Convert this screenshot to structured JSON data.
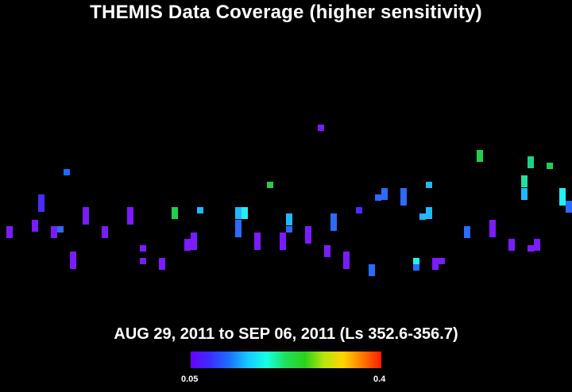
{
  "title": "THEMIS Data Coverage (higher sensitivity)",
  "subtitle": "AUG 29, 2011 to SEP 06, 2011 (Ls 352.6-356.7)",
  "colorbar": {
    "min_label": "0.05",
    "max_label": "0.4",
    "stops": [
      "#6a00ff",
      "#3c2cff",
      "#1d6dff",
      "#17c9ff",
      "#17ffe3",
      "#1ee05a",
      "#2bd21a",
      "#b8e60a",
      "#ffd500",
      "#ff7a00",
      "#ff1a00"
    ]
  },
  "chart_data": {
    "type": "heatmap",
    "value_range": [
      0.05,
      0.4
    ],
    "cells": [
      [
        8,
        285,
        15,
        "#7a1cff"
      ],
      [
        40,
        277,
        15,
        "#7a1cff"
      ],
      [
        48,
        245,
        22,
        "#4a2cff"
      ],
      [
        64,
        285,
        15,
        "#7a1cff"
      ],
      [
        72,
        285,
        8,
        "#2b6bff"
      ],
      [
        80,
        213,
        8,
        "#1a6bff"
      ],
      [
        88,
        317,
        22,
        "#7a1cff"
      ],
      [
        104,
        261,
        22,
        "#7a1cff"
      ],
      [
        128,
        285,
        15,
        "#7a1cff"
      ],
      [
        160,
        261,
        22,
        "#7a1cff"
      ],
      [
        176,
        309,
        8,
        "#7a1cff"
      ],
      [
        176,
        325,
        8,
        "#7a1cff"
      ],
      [
        200,
        325,
        15,
        "#7a1cff"
      ],
      [
        216,
        261,
        15,
        "#20d04a"
      ],
      [
        232,
        301,
        15,
        "#7a1cff"
      ],
      [
        240,
        293,
        22,
        "#7a1cff"
      ],
      [
        248,
        261,
        8,
        "#22b8ff"
      ],
      [
        296,
        261,
        15,
        "#22b8ff"
      ],
      [
        296,
        277,
        22,
        "#2b6bff"
      ],
      [
        304,
        261,
        15,
        "#22f0f0"
      ],
      [
        320,
        293,
        22,
        "#7a1cff"
      ],
      [
        336,
        229,
        8,
        "#20d04a"
      ],
      [
        352,
        293,
        22,
        "#7a1cff"
      ],
      [
        360,
        269,
        15,
        "#22b8ff"
      ],
      [
        360,
        285,
        8,
        "#2b6bff"
      ],
      [
        384,
        285,
        22,
        "#7a1cff"
      ],
      [
        400,
        157,
        8,
        "#7a1cff"
      ],
      [
        408,
        309,
        15,
        "#7a1cff"
      ],
      [
        416,
        269,
        22,
        "#2b6bff"
      ],
      [
        432,
        317,
        22,
        "#7a1cff"
      ],
      [
        448,
        261,
        8,
        "#4a2cff"
      ],
      [
        464,
        333,
        15,
        "#2b6bff"
      ],
      [
        472,
        245,
        8,
        "#2b6bff"
      ],
      [
        480,
        237,
        15,
        "#2b6bff"
      ],
      [
        504,
        237,
        22,
        "#2b6bff"
      ],
      [
        520,
        325,
        8,
        "#22f0f0"
      ],
      [
        520,
        333,
        8,
        "#2b6bff"
      ],
      [
        528,
        269,
        8,
        "#22b8ff"
      ],
      [
        536,
        229,
        8,
        "#22b8ff"
      ],
      [
        536,
        261,
        15,
        "#22b8ff"
      ],
      [
        544,
        325,
        15,
        "#7a1cff"
      ],
      [
        552,
        325,
        8,
        "#7a1cff"
      ],
      [
        584,
        285,
        15,
        "#2b6bff"
      ],
      [
        600,
        189,
        15,
        "#20d04a"
      ],
      [
        616,
        277,
        22,
        "#7a1cff"
      ],
      [
        640,
        301,
        15,
        "#7a1cff"
      ],
      [
        656,
        221,
        15,
        "#22e0a0"
      ],
      [
        656,
        237,
        15,
        "#22b8ff"
      ],
      [
        664,
        197,
        15,
        "#20d085"
      ],
      [
        664,
        309,
        8,
        "#7a1cff"
      ],
      [
        672,
        301,
        15,
        "#7a1cff"
      ],
      [
        688,
        205,
        8,
        "#20d04a"
      ],
      [
        704,
        237,
        22,
        "#22f0f0"
      ],
      [
        712,
        253,
        15,
        "#2b6bff"
      ]
    ]
  }
}
